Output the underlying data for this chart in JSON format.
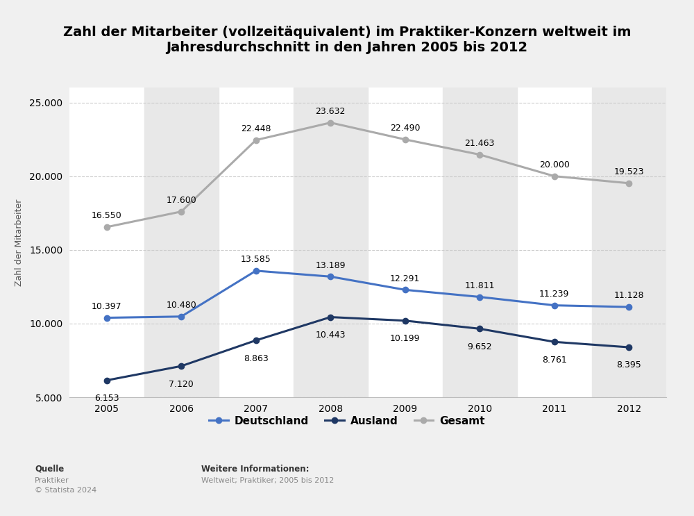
{
  "title": "Zahl der Mitarbeiter (vollzeitäquivalent) im Praktiker-Konzern weltweit im\nJahresdurchschnitt in den Jahren 2005 bis 2012",
  "years": [
    2005,
    2006,
    2007,
    2008,
    2009,
    2010,
    2011,
    2012
  ],
  "deutschland": [
    10397,
    10480,
    13585,
    13189,
    12291,
    11811,
    11239,
    11128
  ],
  "ausland": [
    6153,
    7120,
    8863,
    10443,
    10199,
    9652,
    8761,
    8395
  ],
  "gesamt": [
    16550,
    17600,
    22448,
    23632,
    22490,
    21463,
    20000,
    19523
  ],
  "deutschland_color": "#4472C4",
  "ausland_color": "#1F3864",
  "gesamt_color": "#AAAAAA",
  "ylabel": "Zahl der Mitarbeiter",
  "ylim": [
    5000,
    26000
  ],
  "yticks": [
    5000,
    10000,
    15000,
    20000,
    25000
  ],
  "background_color": "#f0f0f0",
  "plot_bg_color": "#ffffff",
  "stripe_color": "#e8e8e8",
  "stripe_years": [
    2006,
    2008,
    2010,
    2012
  ],
  "legend_labels": [
    "Deutschland",
    "Ausland",
    "Gesamt"
  ],
  "source_label": "Quelle",
  "source_text": "Praktiker\n© Statista 2024",
  "info_label": "Weitere Informationen:",
  "info_text": "Weltweit; Praktiker; 2005 bis 2012",
  "title_fontsize": 14,
  "label_fontsize": 9,
  "tick_fontsize": 10,
  "legend_fontsize": 11
}
